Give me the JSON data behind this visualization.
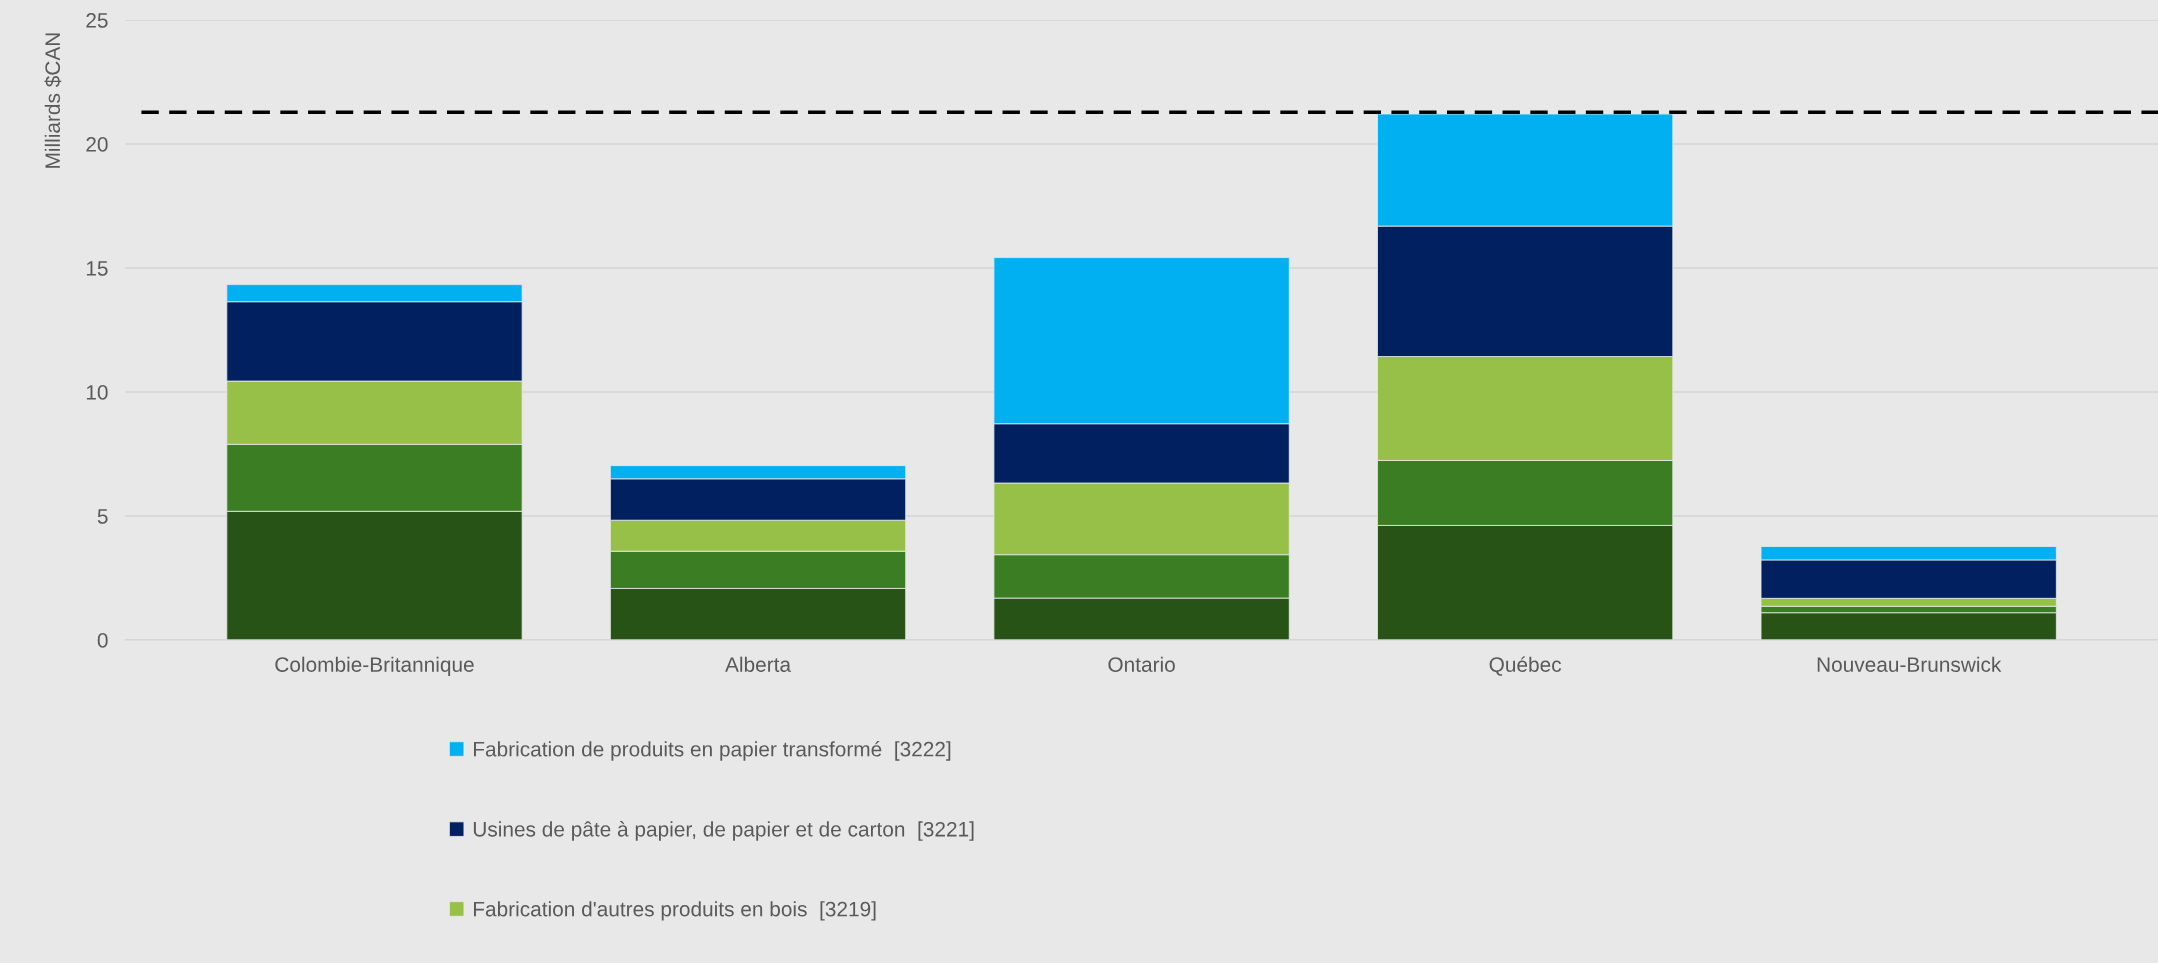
{
  "chart_data": {
    "type": "bar",
    "stacked": true,
    "ylabel": "Milliards $CAN",
    "categories": [
      "Colombie-Britannique",
      "Alberta",
      "Ontario",
      "Québec",
      "Nouveau-Brunswick"
    ],
    "series": [
      {
        "color": "#275317",
        "values": [
          5.19,
          2.08,
          1.69,
          4.62,
          1.1
        ]
      },
      {
        "color": "#3b7d23",
        "values": [
          2.7,
          1.5,
          1.75,
          2.62,
          0.26
        ]
      },
      {
        "name": "Fabrication d'autres produits en bois  [3219]",
        "color": "#97c049",
        "values": [
          2.55,
          1.25,
          2.89,
          4.19,
          0.32
        ]
      },
      {
        "name": "Usines de pâte à papier, de papier et de carton  [3221]",
        "color": "#002060",
        "values": [
          3.2,
          1.67,
          2.39,
          5.26,
          1.55
        ]
      },
      {
        "name": "Fabrication de produits en papier transformé  [3222]",
        "color": "#00b0f0",
        "values": [
          0.69,
          0.53,
          6.7,
          4.52,
          0.54
        ]
      }
    ],
    "ylim": [
      0,
      25
    ],
    "yticks": [
      0,
      5,
      10,
      15,
      20,
      25
    ],
    "grid": "y",
    "legend": "bottom",
    "ref_lines": [
      {
        "axis": "y",
        "value": 21.28,
        "color": "#000000",
        "line_style": "dashed"
      }
    ]
  }
}
